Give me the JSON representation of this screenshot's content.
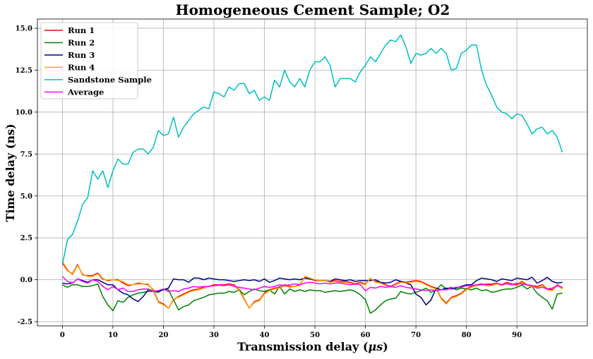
{
  "chart_data": {
    "type": "line",
    "title": "Homogeneous Cement Sample; O2",
    "xlabel_prefix": "Transmission delay (",
    "xlabel_unit": "μs",
    "xlabel_suffix": ")",
    "ylabel": "Time delay (ns)",
    "xlim": [
      -4.95,
      103.95
    ],
    "ylim": [
      -2.75,
      15.55
    ],
    "xticks": [
      0,
      10,
      20,
      30,
      40,
      50,
      60,
      70,
      80,
      90
    ],
    "yticks": [
      -2.5,
      0.0,
      2.5,
      5.0,
      7.5,
      10.0,
      12.5,
      15.0
    ],
    "ytick_labels": [
      "-2.5",
      "0.0",
      "2.5",
      "5.0",
      "7.5",
      "10.0",
      "12.5",
      "15.0"
    ],
    "grid": true,
    "legend_position": "upper-left",
    "series": [
      {
        "name": "Run 1",
        "color": "#ff0000",
        "values": [
          1.0,
          0.55,
          0.35,
          0.9,
          0.3,
          0.25,
          0.25,
          0.4,
          0.05,
          -0.05,
          0.0,
          0.0,
          -0.2,
          -0.35,
          -0.3,
          -0.2,
          -0.25,
          -0.3,
          -0.6,
          -1.3,
          -1.45,
          -1.7,
          -1.2,
          -1.0,
          -0.85,
          -0.7,
          -0.6,
          -0.55,
          -0.45,
          -0.4,
          -0.3,
          -0.3,
          -0.3,
          -0.25,
          -0.3,
          -0.6,
          -1.15,
          -1.7,
          -1.3,
          -1.2,
          -0.8,
          -0.6,
          -0.5,
          -0.45,
          -0.3,
          -0.4,
          -0.4,
          -0.3,
          0.15,
          0.05,
          -0.05,
          -0.05,
          -0.05,
          -0.1,
          -0.05,
          -0.1,
          -0.1,
          -0.15,
          -0.25,
          -0.15,
          -0.25,
          0.05,
          -0.1,
          -0.15,
          -0.3,
          -0.4,
          -0.25,
          -0.1,
          -0.15,
          -0.1,
          -0.05,
          -0.1,
          -0.25,
          -0.4,
          -0.5,
          -1.1,
          -1.4,
          -1.05,
          -0.95,
          -0.8,
          -0.55,
          -0.4,
          -0.3,
          -0.25,
          -0.3,
          -0.3,
          -0.2,
          -0.3,
          -0.15,
          -0.25,
          -0.3,
          -0.1,
          -0.3,
          -0.35,
          -0.4,
          -0.3,
          -0.55,
          -0.6,
          -0.3,
          -0.5
        ]
      },
      {
        "name": "Run 2",
        "color": "#008000",
        "values": [
          -0.3,
          -0.45,
          -0.3,
          -0.3,
          -0.4,
          -0.4,
          -0.35,
          -0.25,
          -1.0,
          -1.5,
          -1.85,
          -1.25,
          -1.35,
          -1.05,
          -0.9,
          -0.8,
          -0.75,
          -0.7,
          -0.7,
          -0.75,
          -0.55,
          -0.6,
          -1.2,
          -1.8,
          -1.6,
          -1.5,
          -1.25,
          -1.15,
          -1.05,
          -0.9,
          -0.85,
          -0.8,
          -0.8,
          -0.7,
          -0.75,
          -0.6,
          -0.9,
          -0.7,
          -0.55,
          -0.65,
          -0.7,
          -0.6,
          -0.85,
          -0.4,
          -0.85,
          -0.55,
          -0.7,
          -0.6,
          -0.7,
          -0.6,
          -0.65,
          -0.65,
          -0.75,
          -0.7,
          -0.65,
          -0.7,
          -0.65,
          -0.6,
          -0.7,
          -0.9,
          -1.2,
          -2.0,
          -1.8,
          -1.5,
          -1.25,
          -1.15,
          -1.1,
          -0.7,
          -0.8,
          -0.85,
          -0.75,
          -0.65,
          -0.5,
          -0.75,
          -0.6,
          -0.3,
          -0.55,
          -0.45,
          -0.6,
          -0.5,
          -0.55,
          -0.6,
          -0.5,
          -0.65,
          -0.6,
          -0.75,
          -0.7,
          -0.6,
          -0.55,
          -0.55,
          -0.45,
          -0.3,
          -0.55,
          -0.4,
          -0.8,
          -1.05,
          -1.25,
          -1.75,
          -0.85,
          -0.8
        ]
      },
      {
        "name": "Run 3",
        "color": "#000080",
        "values": [
          -0.2,
          -0.25,
          -0.2,
          0.05,
          -0.05,
          -0.15,
          0.0,
          0.0,
          -0.15,
          -0.3,
          -0.3,
          -0.6,
          -0.8,
          -0.9,
          -1.15,
          -1.3,
          -1.0,
          -0.6,
          -0.65,
          -0.7,
          -0.6,
          -0.5,
          0.05,
          0.0,
          0.0,
          -0.15,
          0.1,
          0.1,
          0.0,
          0.1,
          0.05,
          0.0,
          0.0,
          -0.05,
          -0.1,
          -0.05,
          0.0,
          -0.05,
          0.0,
          -0.1,
          0.05,
          -0.15,
          -0.05,
          0.1,
          0.05,
          0.0,
          0.05,
          0.0,
          0.1,
          0.05,
          0.0,
          -0.05,
          -0.05,
          -0.1,
          0.05,
          0.0,
          -0.05,
          0.0,
          -0.1,
          -0.05,
          -0.05,
          -0.05,
          0.0,
          -0.15,
          -0.2,
          -0.15,
          0.0,
          -0.1,
          -0.2,
          -0.3,
          -0.85,
          -1.05,
          -1.5,
          -1.2,
          -0.5,
          -0.6,
          -0.5,
          -0.55,
          -0.5,
          -0.4,
          -0.3,
          -0.3,
          -0.05,
          0.1,
          0.05,
          0.0,
          -0.1,
          0.05,
          0.0,
          -0.05,
          0.1,
          0.05,
          0.0,
          0.15,
          -0.2,
          -0.05,
          0.15,
          -0.1,
          -0.2,
          -0.15
        ]
      },
      {
        "name": "Run 4",
        "color": "#ffa500",
        "values": [
          1.1,
          0.6,
          0.3,
          0.85,
          0.35,
          0.2,
          0.2,
          0.35,
          0.0,
          0.0,
          0.0,
          -0.05,
          -0.1,
          -0.3,
          -0.3,
          -0.25,
          -0.25,
          -0.25,
          -0.65,
          -1.35,
          -1.5,
          -1.7,
          -1.15,
          -1.05,
          -0.9,
          -0.75,
          -0.65,
          -0.6,
          -0.5,
          -0.4,
          -0.35,
          -0.35,
          -0.35,
          -0.3,
          -0.35,
          -0.65,
          -1.2,
          -1.7,
          -1.35,
          -1.25,
          -0.85,
          -0.65,
          -0.55,
          -0.5,
          -0.35,
          -0.45,
          -0.4,
          -0.35,
          0.2,
          0.1,
          0.0,
          -0.05,
          -0.05,
          -0.15,
          -0.1,
          -0.15,
          -0.15,
          -0.2,
          -0.3,
          -0.2,
          -0.3,
          0.1,
          -0.15,
          -0.2,
          -0.35,
          -0.45,
          -0.3,
          -0.15,
          -0.2,
          -0.15,
          -0.1,
          -0.15,
          -0.3,
          -0.45,
          -0.55,
          -1.15,
          -1.45,
          -1.1,
          -1.0,
          -0.85,
          -0.6,
          -0.45,
          -0.35,
          -0.3,
          -0.35,
          -0.35,
          -0.25,
          -0.35,
          -0.2,
          -0.3,
          -0.35,
          -0.15,
          -0.35,
          -0.4,
          -0.45,
          -0.35,
          -0.6,
          -0.65,
          -0.35,
          -0.55
        ]
      },
      {
        "name": "Sandstone Sample",
        "color": "#00bfbf",
        "values": [
          0.9,
          2.4,
          2.7,
          3.5,
          4.5,
          4.9,
          6.5,
          6.0,
          6.5,
          5.5,
          6.5,
          7.2,
          6.9,
          6.9,
          7.6,
          7.8,
          7.8,
          7.5,
          7.9,
          8.9,
          8.6,
          8.7,
          9.7,
          8.5,
          9.1,
          9.5,
          9.9,
          10.1,
          10.3,
          10.2,
          11.2,
          11.1,
          10.9,
          11.5,
          11.3,
          11.7,
          11.7,
          11.1,
          11.3,
          10.7,
          10.9,
          10.7,
          11.9,
          11.5,
          12.5,
          11.8,
          11.5,
          12.0,
          11.5,
          12.5,
          13.0,
          13.0,
          13.3,
          12.8,
          11.5,
          12.0,
          12.0,
          12.0,
          11.8,
          12.4,
          12.8,
          13.3,
          13.0,
          13.5,
          14.0,
          14.3,
          14.2,
          14.6,
          13.9,
          12.9,
          13.5,
          13.4,
          13.5,
          13.8,
          13.5,
          13.8,
          13.5,
          12.5,
          12.6,
          13.5,
          13.7,
          14.0,
          14.0,
          12.5,
          11.6,
          11.0,
          10.3,
          10.0,
          9.9,
          9.6,
          9.9,
          9.8,
          9.3,
          8.7,
          9.0,
          9.1,
          8.7,
          8.9,
          8.5,
          7.6
        ]
      },
      {
        "name": "Average",
        "color": "#ff00ff",
        "values": [
          0.2,
          -0.1,
          -0.2,
          0.05,
          -0.1,
          -0.2,
          0.0,
          -0.1,
          -0.4,
          -0.6,
          -0.4,
          -0.6,
          -0.5,
          -0.7,
          -0.7,
          -0.6,
          -0.55,
          -0.55,
          -0.7,
          -0.65,
          -0.55,
          -0.7,
          -0.65,
          -0.7,
          -0.55,
          -0.5,
          -0.4,
          -0.45,
          -0.4,
          -0.4,
          -0.35,
          -0.3,
          -0.35,
          -0.3,
          -0.4,
          -0.45,
          -0.5,
          -0.55,
          -0.6,
          -0.5,
          -0.4,
          -0.45,
          -0.4,
          -0.3,
          -0.35,
          -0.3,
          -0.25,
          -0.3,
          -0.2,
          -0.15,
          -0.2,
          -0.25,
          -0.2,
          -0.25,
          -0.2,
          -0.2,
          -0.25,
          -0.3,
          -0.25,
          -0.3,
          -0.65,
          -0.45,
          -0.5,
          -0.4,
          -0.45,
          -0.4,
          -0.45,
          -0.35,
          -0.45,
          -0.5,
          -0.55,
          -0.6,
          -0.65,
          -0.6,
          -0.65,
          -0.6,
          -0.6,
          -0.5,
          -0.45,
          -0.45,
          -0.35,
          -0.35,
          -0.3,
          -0.3,
          -0.25,
          -0.25,
          -0.2,
          -0.3,
          -0.25,
          -0.3,
          -0.2,
          -0.25,
          -0.3,
          -0.35,
          -0.5,
          -0.45,
          -0.55,
          -0.5,
          -0.35,
          -0.45
        ]
      }
    ]
  }
}
